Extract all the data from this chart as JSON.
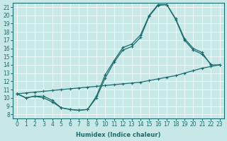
{
  "xlabel": "Humidex (Indice chaleur)",
  "background_color": "#c8e8e8",
  "line_color": "#1a6b6b",
  "xlim": [
    -0.5,
    23.5
  ],
  "ylim": [
    7.5,
    21.5
  ],
  "yticks": [
    8,
    9,
    10,
    11,
    12,
    13,
    14,
    15,
    16,
    17,
    18,
    19,
    20,
    21
  ],
  "xticks": [
    0,
    1,
    2,
    3,
    4,
    5,
    6,
    7,
    8,
    9,
    10,
    11,
    12,
    13,
    14,
    15,
    16,
    17,
    18,
    19,
    20,
    21,
    22,
    23
  ],
  "curveA_x": [
    0,
    1,
    2,
    3,
    4,
    5,
    6,
    7,
    8,
    9,
    10,
    11,
    12,
    13,
    14,
    15,
    16,
    17,
    18,
    19,
    20,
    21,
    22
  ],
  "curveA_y": [
    10.5,
    10.0,
    10.2,
    10.2,
    9.7,
    8.8,
    8.6,
    8.5,
    8.6,
    10.0,
    12.4,
    14.3,
    15.8,
    16.2,
    17.3,
    19.9,
    21.2,
    21.3,
    19.5,
    17.0,
    15.8,
    15.3,
    14.1
  ],
  "curveB_x": [
    0,
    1,
    2,
    3,
    4,
    5,
    6,
    7,
    8,
    9,
    10,
    11,
    12,
    13,
    14,
    15,
    16,
    17,
    18,
    19,
    20,
    21,
    22,
    23
  ],
  "curveB_y": [
    10.5,
    10.0,
    10.2,
    10.0,
    9.5,
    8.8,
    8.6,
    8.5,
    8.6,
    10.2,
    12.8,
    14.5,
    16.1,
    16.5,
    17.6,
    20.0,
    21.3,
    21.3,
    19.6,
    17.2,
    16.0,
    15.5,
    14.0,
    14.0
  ],
  "curveC_x": [
    0,
    1,
    2,
    3,
    4,
    5,
    6,
    7,
    8,
    9,
    10,
    11,
    12,
    13,
    14,
    15,
    16,
    17,
    18,
    19,
    20,
    21,
    22,
    23
  ],
  "curveC_y": [
    10.5,
    10.6,
    10.7,
    10.8,
    10.9,
    11.0,
    11.1,
    11.2,
    11.3,
    11.4,
    11.5,
    11.6,
    11.7,
    11.8,
    11.9,
    12.1,
    12.3,
    12.5,
    12.7,
    13.0,
    13.3,
    13.6,
    13.8,
    14.0
  ]
}
